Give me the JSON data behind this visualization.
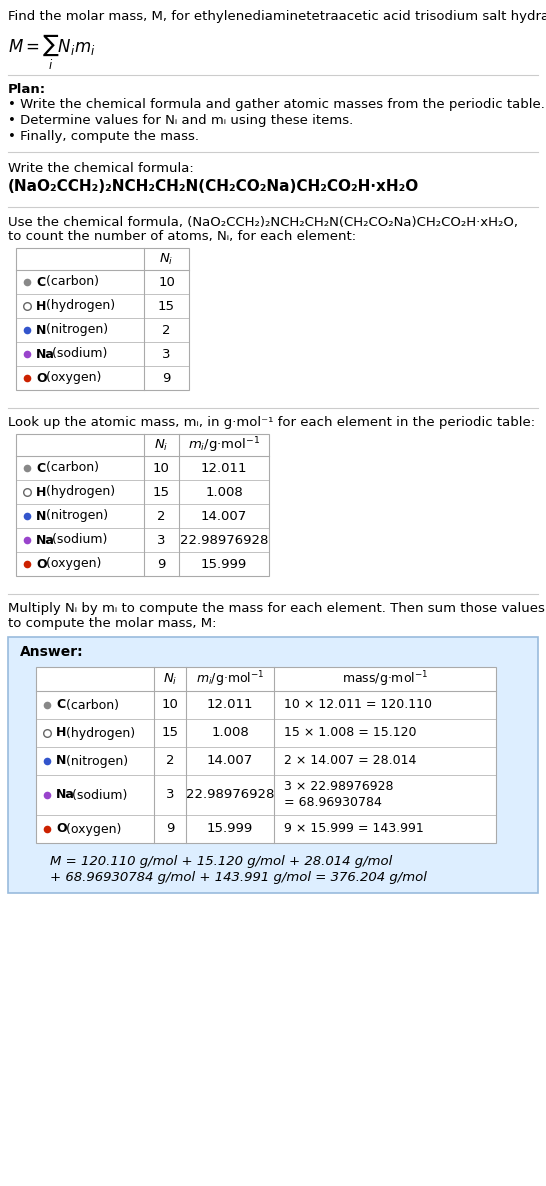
{
  "bg_color": "#ffffff",
  "answer_box_color": "#ddeeff",
  "title_text": "Find the molar mass, M, for ethylenediaminetetraacetic acid trisodium salt hydrate:",
  "plan_header": "Plan:",
  "plan_bullets": [
    "• Write the chemical formula and gather atomic masses from the periodic table.",
    "• Determine values for Nᵢ and mᵢ using these items.",
    "• Finally, compute the mass."
  ],
  "chem_formula_header": "Write the chemical formula:",
  "chem_formula": "(NaO₂CCH₂)₂NCH₂CH₂N(CH₂CO₂Na)CH₂CO₂H·xH₂O",
  "count_header_line1": "Use the chemical formula, (NaO₂CCH₂)₂NCH₂CH₂N(CH₂CO₂Na)CH₂CO₂H·xH₂O,",
  "count_header_line2": "to count the number of atoms, Nᵢ, for each element:",
  "lookup_header": "Look up the atomic mass, mᵢ, in g·mol⁻¹ for each element in the periodic table:",
  "multiply_header_line1": "Multiply Nᵢ by mᵢ to compute the mass for each element. Then sum those values",
  "multiply_header_line2": "to compute the molar mass, M:",
  "answer_label": "Answer:",
  "elements": [
    "C (carbon)",
    "H (hydrogen)",
    "N (nitrogen)",
    "Na (sodium)",
    "O (oxygen)"
  ],
  "element_symbols": [
    "C",
    "H",
    "N",
    "Na",
    "O"
  ],
  "dot_colors": [
    "#888888",
    "none",
    "#3355cc",
    "#9944cc",
    "#cc2200"
  ],
  "dot_filled": [
    true,
    false,
    true,
    true,
    true
  ],
  "Ni": [
    10,
    15,
    2,
    3,
    9
  ],
  "mi": [
    "12.011",
    "1.008",
    "14.007",
    "22.98976928",
    "15.999"
  ],
  "mass_calc": [
    "10 × 12.011 = 120.110",
    "15 × 1.008 = 15.120",
    "2 × 14.007 = 28.014",
    "3 × 22.98976928\n= 68.96930784",
    "9 × 15.999 = 143.991"
  ],
  "final_eq_line1": "M = 120.110 g/mol + 15.120 g/mol + 28.014 g/mol",
  "final_eq_line2": "+ 68.96930784 g/mol + 143.991 g/mol = 376.204 g/mol",
  "sep_color": "#cccccc",
  "table_border_color": "#aaaaaa",
  "answer_border_color": "#99bbdd"
}
